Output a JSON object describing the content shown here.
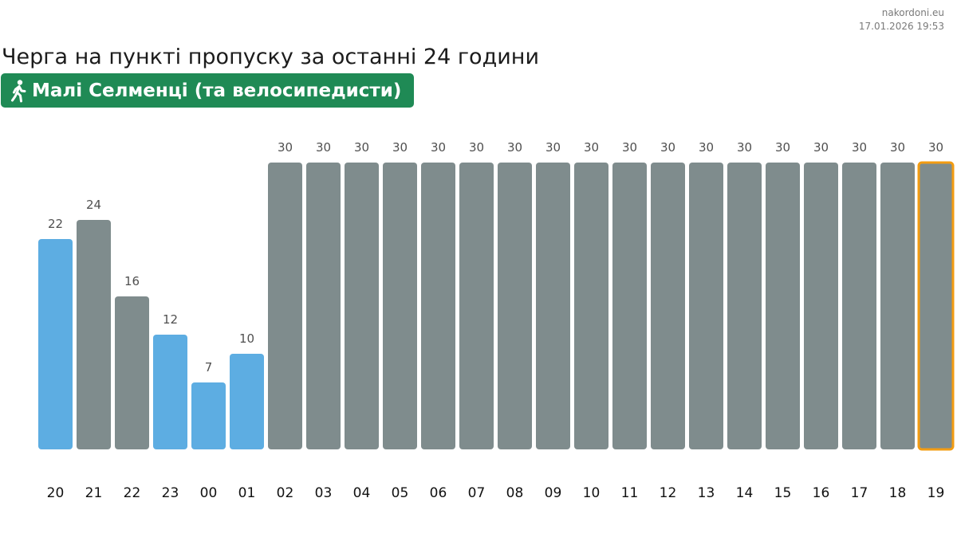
{
  "source": {
    "site": "nakordoni.eu",
    "timestamp": "17.01.2026 19:53"
  },
  "title": "Черга на пункті пропуску за останні 24 години",
  "checkpoint": {
    "icon": "walking-person-icon",
    "name": "Малі Селменці (та велосипедисти)",
    "color": "#1f8a55"
  },
  "colors": {
    "highlight_bar": "#5dade2",
    "default_bar": "#7f8c8d",
    "current_outline": "#f39c12"
  },
  "chart_data": {
    "type": "bar",
    "title": "",
    "xlabel": "",
    "ylabel": "",
    "ylim": [
      0,
      30
    ],
    "categories": [
      "20",
      "21",
      "22",
      "23",
      "00",
      "01",
      "02",
      "03",
      "04",
      "05",
      "06",
      "07",
      "08",
      "09",
      "10",
      "11",
      "12",
      "13",
      "14",
      "15",
      "16",
      "17",
      "18",
      "19"
    ],
    "values": [
      22,
      24,
      16,
      12,
      7,
      10,
      30,
      30,
      30,
      30,
      30,
      30,
      30,
      30,
      30,
      30,
      30,
      30,
      30,
      30,
      30,
      30,
      30,
      30
    ],
    "bar_colors": [
      "blue",
      "gray",
      "gray",
      "blue",
      "blue",
      "blue",
      "gray",
      "gray",
      "gray",
      "gray",
      "gray",
      "gray",
      "gray",
      "gray",
      "gray",
      "gray",
      "gray",
      "gray",
      "gray",
      "gray",
      "gray",
      "gray",
      "gray",
      "gray"
    ],
    "current_hour": "19",
    "grid": false,
    "legend": "none"
  }
}
